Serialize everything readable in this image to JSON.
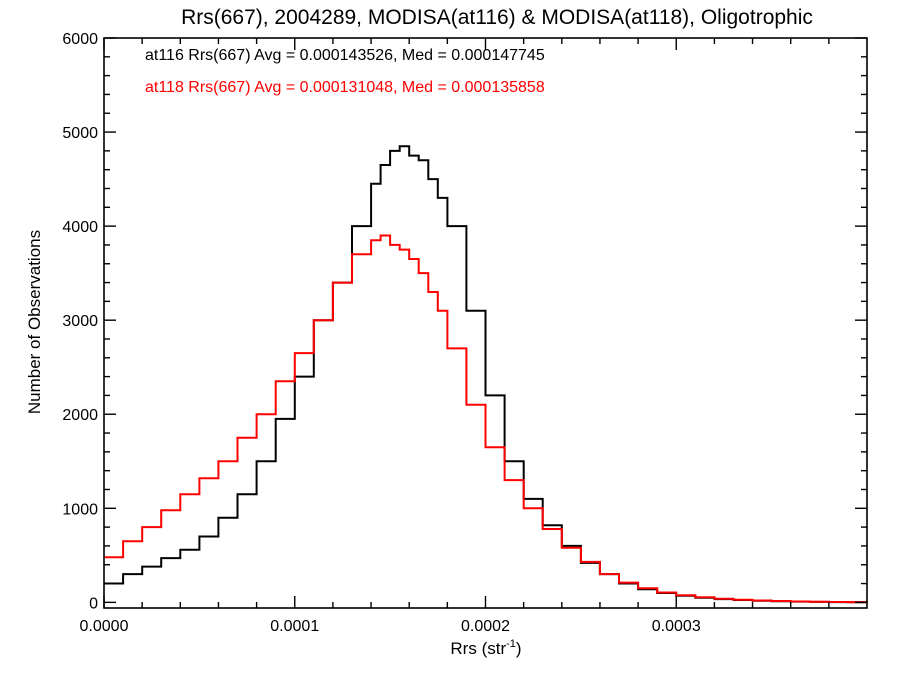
{
  "chart_data": {
    "type": "line",
    "title": "Rrs(667), 2004289, MODISA(at116) & MODISA(at118), Oligotrophic",
    "xlabel": "Rrs (str",
    "xlabel_sup": "-1",
    "xlabel_close": ")",
    "ylabel": "Number of Observations",
    "xlim": [
      0,
      0.0004
    ],
    "ylim": [
      -60,
      6000
    ],
    "x_ticks": [
      "0.0000",
      "0.0001",
      "0.0002",
      "0.0003"
    ],
    "y_ticks": [
      "0",
      "1000",
      "2000",
      "3000",
      "4000",
      "5000",
      "6000"
    ],
    "annotations": [
      {
        "text": "at116 Rrs(667) Avg = 0.000143526, Med = 0.000147745",
        "color": "#000000"
      },
      {
        "text": "at118 Rrs(667) Avg = 0.000131048, Med = 0.000135858",
        "color": "#ff0000"
      }
    ],
    "style": "step",
    "series": [
      {
        "color": "#000000",
        "x": [
          0.0,
          1e-05,
          2e-05,
          3e-05,
          4e-05,
          5e-05,
          6e-05,
          7e-05,
          8e-05,
          9e-05,
          0.0001,
          0.00011,
          0.00012,
          0.00013,
          0.00014,
          0.000145,
          0.00015,
          0.000155,
          0.00016,
          0.000165,
          0.00017,
          0.000175,
          0.00018,
          0.00019,
          0.0002,
          0.00021,
          0.00022,
          0.00023,
          0.00024,
          0.00025,
          0.00026,
          0.00027,
          0.00028,
          0.00029,
          0.0003,
          0.00031,
          0.00032,
          0.00033,
          0.00034,
          0.00035,
          0.00036,
          0.00037,
          0.00038,
          0.00039,
          0.0004
        ],
        "y": [
          200,
          300,
          380,
          470,
          560,
          700,
          900,
          1150,
          1500,
          1950,
          2400,
          3000,
          3400,
          4000,
          4450,
          4650,
          4800,
          4850,
          4750,
          4700,
          4500,
          4300,
          4000,
          3100,
          2200,
          1500,
          1100,
          820,
          600,
          420,
          300,
          200,
          140,
          100,
          70,
          50,
          35,
          25,
          18,
          12,
          8,
          5,
          3,
          2,
          1
        ]
      },
      {
        "color": "#ff0000",
        "x": [
          0.0,
          1e-05,
          2e-05,
          3e-05,
          4e-05,
          5e-05,
          6e-05,
          7e-05,
          8e-05,
          9e-05,
          0.0001,
          0.00011,
          0.00012,
          0.00013,
          0.00014,
          0.000145,
          0.00015,
          0.000155,
          0.00016,
          0.000165,
          0.00017,
          0.000175,
          0.00018,
          0.00019,
          0.0002,
          0.00021,
          0.00022,
          0.00023,
          0.00024,
          0.00025,
          0.00026,
          0.00027,
          0.00028,
          0.00029,
          0.0003,
          0.00031,
          0.00032,
          0.00033,
          0.00034,
          0.00035,
          0.00036,
          0.00037,
          0.00038,
          0.00039,
          0.0004
        ],
        "y": [
          480,
          650,
          800,
          980,
          1150,
          1320,
          1500,
          1750,
          2000,
          2350,
          2650,
          3000,
          3400,
          3700,
          3850,
          3900,
          3800,
          3750,
          3650,
          3500,
          3300,
          3100,
          2700,
          2100,
          1650,
          1300,
          1000,
          780,
          580,
          430,
          300,
          210,
          150,
          105,
          75,
          55,
          38,
          27,
          20,
          14,
          9,
          6,
          4,
          3,
          2
        ]
      }
    ]
  }
}
